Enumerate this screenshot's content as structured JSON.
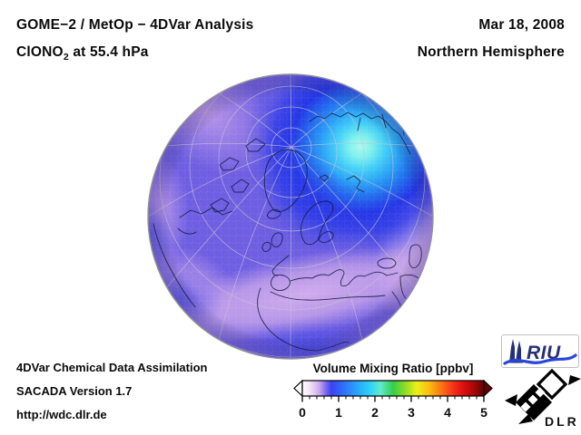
{
  "header": {
    "title_line1": "GOME−2 / MetOp − 4DVar Analysis",
    "species_prefix": "ClONO",
    "species_subscript": "2",
    "level_suffix": " at 55.4 hPa",
    "date": "Mar 18, 2008",
    "region": "Northern Hemisphere"
  },
  "footer": {
    "line1": "4DVar Chemical Data Assimilation",
    "line2": "SACADA Version 1.7",
    "line3": "http://wdc.dlr.de"
  },
  "colorbar": {
    "label": "Volume Mixing Ratio [ppbv]",
    "ticks": [
      "0",
      "1",
      "2",
      "3",
      "4",
      "5"
    ],
    "min": 0,
    "max": 5,
    "arrow_left_color": "#ffffff",
    "arrow_right_color": "#5e0404",
    "gradient": [
      {
        "o": 0.0,
        "c": "#ffffff"
      },
      {
        "o": 0.04,
        "c": "#f6e4f6"
      },
      {
        "o": 0.09,
        "c": "#cfaef2"
      },
      {
        "o": 0.13,
        "c": "#7a6af2"
      },
      {
        "o": 0.16,
        "c": "#3a42f2"
      },
      {
        "o": 0.22,
        "c": "#2e6ef8"
      },
      {
        "o": 0.3,
        "c": "#28a4fa"
      },
      {
        "o": 0.37,
        "c": "#2cd0f8"
      },
      {
        "o": 0.43,
        "c": "#5feccc"
      },
      {
        "o": 0.5,
        "c": "#35cc47"
      },
      {
        "o": 0.57,
        "c": "#97dc20"
      },
      {
        "o": 0.63,
        "c": "#f0ee1c"
      },
      {
        "o": 0.7,
        "c": "#fcba10"
      },
      {
        "o": 0.76,
        "c": "#fc7a14"
      },
      {
        "o": 0.82,
        "c": "#f83c1a"
      },
      {
        "o": 0.88,
        "c": "#e01212"
      },
      {
        "o": 0.94,
        "c": "#ac0808"
      },
      {
        "o": 1.0,
        "c": "#5e0404"
      }
    ]
  },
  "logos": {
    "riu": "RIU",
    "dlr": "DLR"
  },
  "chart_data": {
    "type": "heatmap",
    "projection": "orthographic globe, Northern Hemisphere polar view",
    "title": "GOME−2 / MetOp − 4DVar Analysis",
    "subtitle": "ClONO2 at 55.4 hPa",
    "date": "Mar 18, 2008",
    "region": "Northern Hemisphere",
    "variable": "ClONO2 volume mixing ratio",
    "units": "ppbv",
    "colorbar_range": [
      0,
      5
    ],
    "colorbar_ticks": [
      0,
      1,
      2,
      3,
      4,
      5
    ],
    "legend_position": "bottom center",
    "features": [
      {
        "area": "Arctic Siberia / Kara Sea maximum",
        "value_ppbv": 2.0,
        "appearance": "bright light-cyan core"
      },
      {
        "area": "halo around maximum",
        "value_ppbv": 1.4,
        "appearance": "cyan-blue"
      },
      {
        "area": "ring from pole through Scandinavia and western Russia",
        "value_ppbv": 0.9,
        "appearance": "dark blue band"
      },
      {
        "area": "hemispheric background",
        "value_ppbv": 0.5,
        "appearance": "blue-violet"
      },
      {
        "area": "mid-latitude band across North Atlantic, Africa and Middle East; limb near Canada and Caspian",
        "value_ppbv": 0.25,
        "appearance": "pale pink-lavender"
      }
    ],
    "base_color": "#6e5ee2",
    "max_color": "#aefaea",
    "band_color": "#cda8ea",
    "ring_color": "#2336e6"
  }
}
